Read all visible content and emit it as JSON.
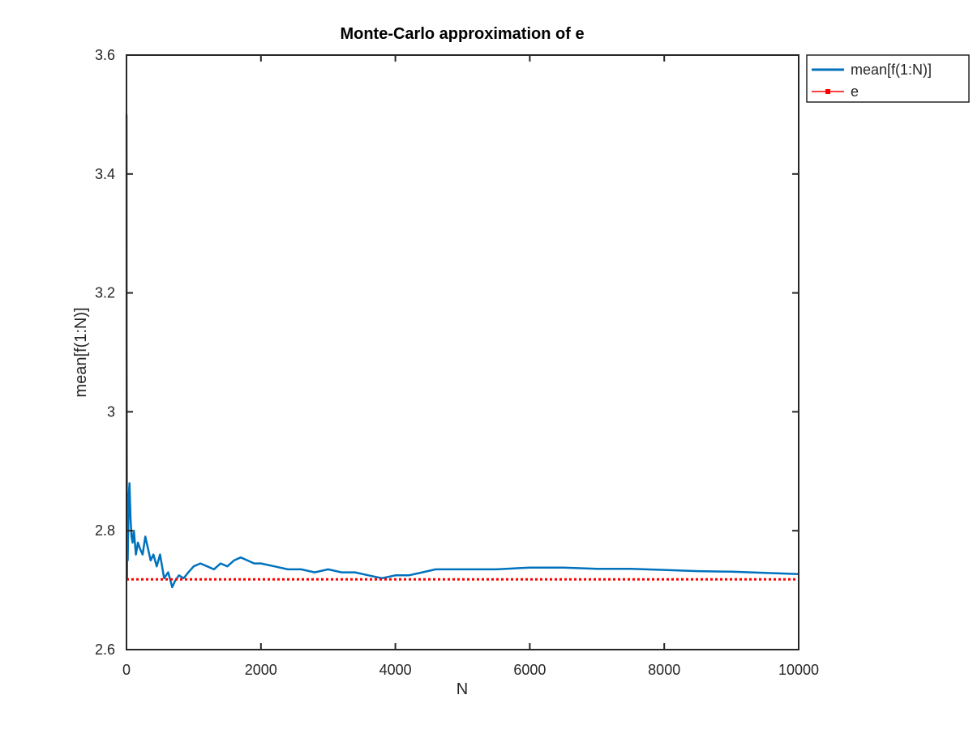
{
  "chart_data": {
    "type": "line",
    "title": "Monte-Carlo approximation of e",
    "xlabel": "N",
    "ylabel": "mean[f(1:N)]",
    "xlim": [
      0,
      10000
    ],
    "ylim": [
      2.6,
      3.6
    ],
    "xticks": [
      0,
      2000,
      4000,
      6000,
      8000,
      10000
    ],
    "yticks": [
      2.6,
      2.8,
      3.0,
      3.2,
      3.4,
      3.6
    ],
    "xtick_labels": [
      "0",
      "2000",
      "4000",
      "6000",
      "8000",
      "10000"
    ],
    "ytick_labels": [
      "2.6",
      "2.8",
      "3",
      "3.2",
      "3.4",
      "3.6"
    ],
    "grid": false,
    "legend_position": "outside-top-right",
    "series": [
      {
        "name": "mean[f(1:N)]",
        "style": "solid",
        "color": "#0072bd",
        "x": [
          1,
          3,
          5,
          8,
          12,
          18,
          25,
          35,
          45,
          60,
          75,
          90,
          110,
          140,
          170,
          200,
          240,
          280,
          320,
          360,
          400,
          450,
          500,
          560,
          620,
          680,
          720,
          780,
          850,
          920,
          1000,
          1100,
          1200,
          1300,
          1400,
          1500,
          1600,
          1700,
          1800,
          1900,
          2000,
          2200,
          2400,
          2600,
          2800,
          3000,
          3200,
          3400,
          3600,
          3800,
          4000,
          4200,
          4400,
          4600,
          4800,
          5000,
          5500,
          6000,
          6500,
          7000,
          7500,
          8000,
          8500,
          9000,
          9500,
          10000
        ],
        "y": [
          3.5,
          3.1,
          2.95,
          2.72,
          2.85,
          2.75,
          2.8,
          2.86,
          2.88,
          2.82,
          2.79,
          2.78,
          2.8,
          2.76,
          2.78,
          2.77,
          2.76,
          2.79,
          2.77,
          2.75,
          2.76,
          2.74,
          2.76,
          2.72,
          2.73,
          2.705,
          2.715,
          2.725,
          2.72,
          2.73,
          2.74,
          2.745,
          2.74,
          2.735,
          2.745,
          2.74,
          2.75,
          2.755,
          2.75,
          2.745,
          2.745,
          2.74,
          2.735,
          2.735,
          2.73,
          2.735,
          2.73,
          2.73,
          2.725,
          2.72,
          2.725,
          2.725,
          2.73,
          2.735,
          2.735,
          2.735,
          2.735,
          2.738,
          2.738,
          2.736,
          2.736,
          2.734,
          2.732,
          2.731,
          2.729,
          2.727
        ]
      },
      {
        "name": "e",
        "style": "dotted",
        "marker": "square",
        "color": "#ff0000",
        "x": [
          0,
          10000
        ],
        "y": [
          2.71828,
          2.71828
        ]
      }
    ]
  }
}
